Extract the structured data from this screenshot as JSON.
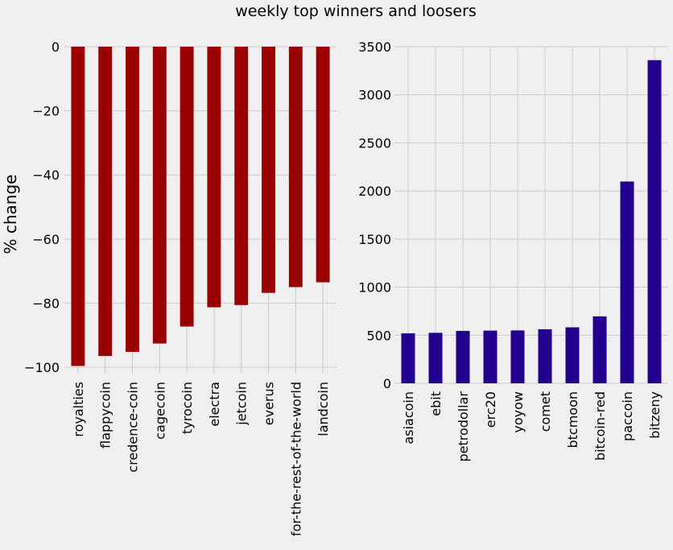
{
  "figure": {
    "title": "weekly top winners and loosers",
    "background": "#f0f0f0"
  },
  "chart_data": [
    {
      "type": "bar",
      "title": "",
      "xlabel": "",
      "ylabel": "% change",
      "color": "#990000",
      "ylim": [
        -102,
        0
      ],
      "yticks": [
        0,
        -20,
        -40,
        -60,
        -80,
        -100
      ],
      "ytick_labels": [
        "0",
        "−20",
        "−40",
        "−60",
        "−80",
        "−100"
      ],
      "categories": [
        "royalties",
        "flappycoin",
        "credence-coin",
        "cagecoin",
        "tyrocoin",
        "electra",
        "jetcoin",
        "everus",
        "for-the-rest-of-the-world",
        "landcoin"
      ],
      "values": [
        -99.6,
        -96.5,
        -95.2,
        -92.6,
        -87.3,
        -81.3,
        -80.6,
        -76.8,
        -75.0,
        -73.5
      ],
      "grid": true
    },
    {
      "type": "bar",
      "title": "",
      "xlabel": "",
      "ylabel": "",
      "color": "#23008e",
      "ylim": [
        0,
        3500
      ],
      "yticks": [
        0,
        500,
        1000,
        1500,
        2000,
        2500,
        3000,
        3500
      ],
      "ytick_labels": [
        "0",
        "500",
        "1000",
        "1500",
        "2000",
        "2500",
        "3000",
        "3500"
      ],
      "categories": [
        "asiacoin",
        "ebit",
        "petrodollar",
        "erc20",
        "yoyow",
        "comet",
        "btcmoon",
        "bitcoin-red",
        "paccoin",
        "bitzeny"
      ],
      "values": [
        520,
        525,
        545,
        548,
        550,
        562,
        582,
        696,
        2098,
        3360
      ],
      "grid": true
    }
  ]
}
